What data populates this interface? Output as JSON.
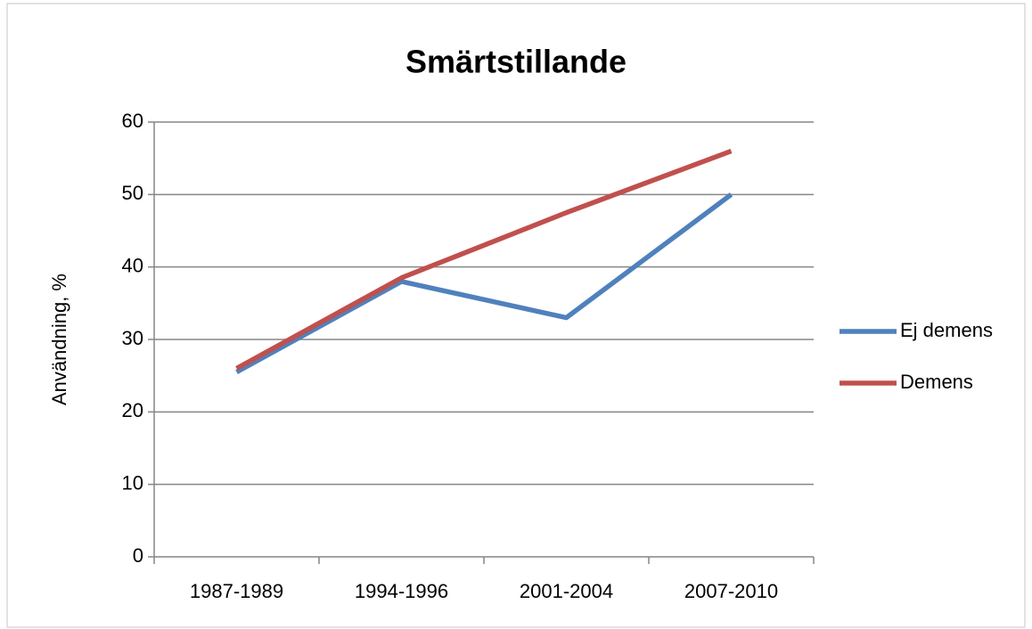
{
  "chart_data": {
    "type": "line",
    "title": "Smärtstillande",
    "y_label": "Användning, %",
    "categories": [
      "1987-1989",
      "1994-1996",
      "2001-2004",
      "2007-2010"
    ],
    "series": [
      {
        "name": "Ej demens",
        "color": "#4f81bd",
        "values": [
          25.5,
          38,
          33,
          50
        ]
      },
      {
        "name": "Demens",
        "color": "#c0504d",
        "values": [
          26,
          38.5,
          47.5,
          56
        ]
      }
    ],
    "ylim": [
      0,
      60
    ],
    "yticks": [
      0,
      10,
      20,
      30,
      40,
      50,
      60
    ],
    "grid": true,
    "legend": "right"
  }
}
